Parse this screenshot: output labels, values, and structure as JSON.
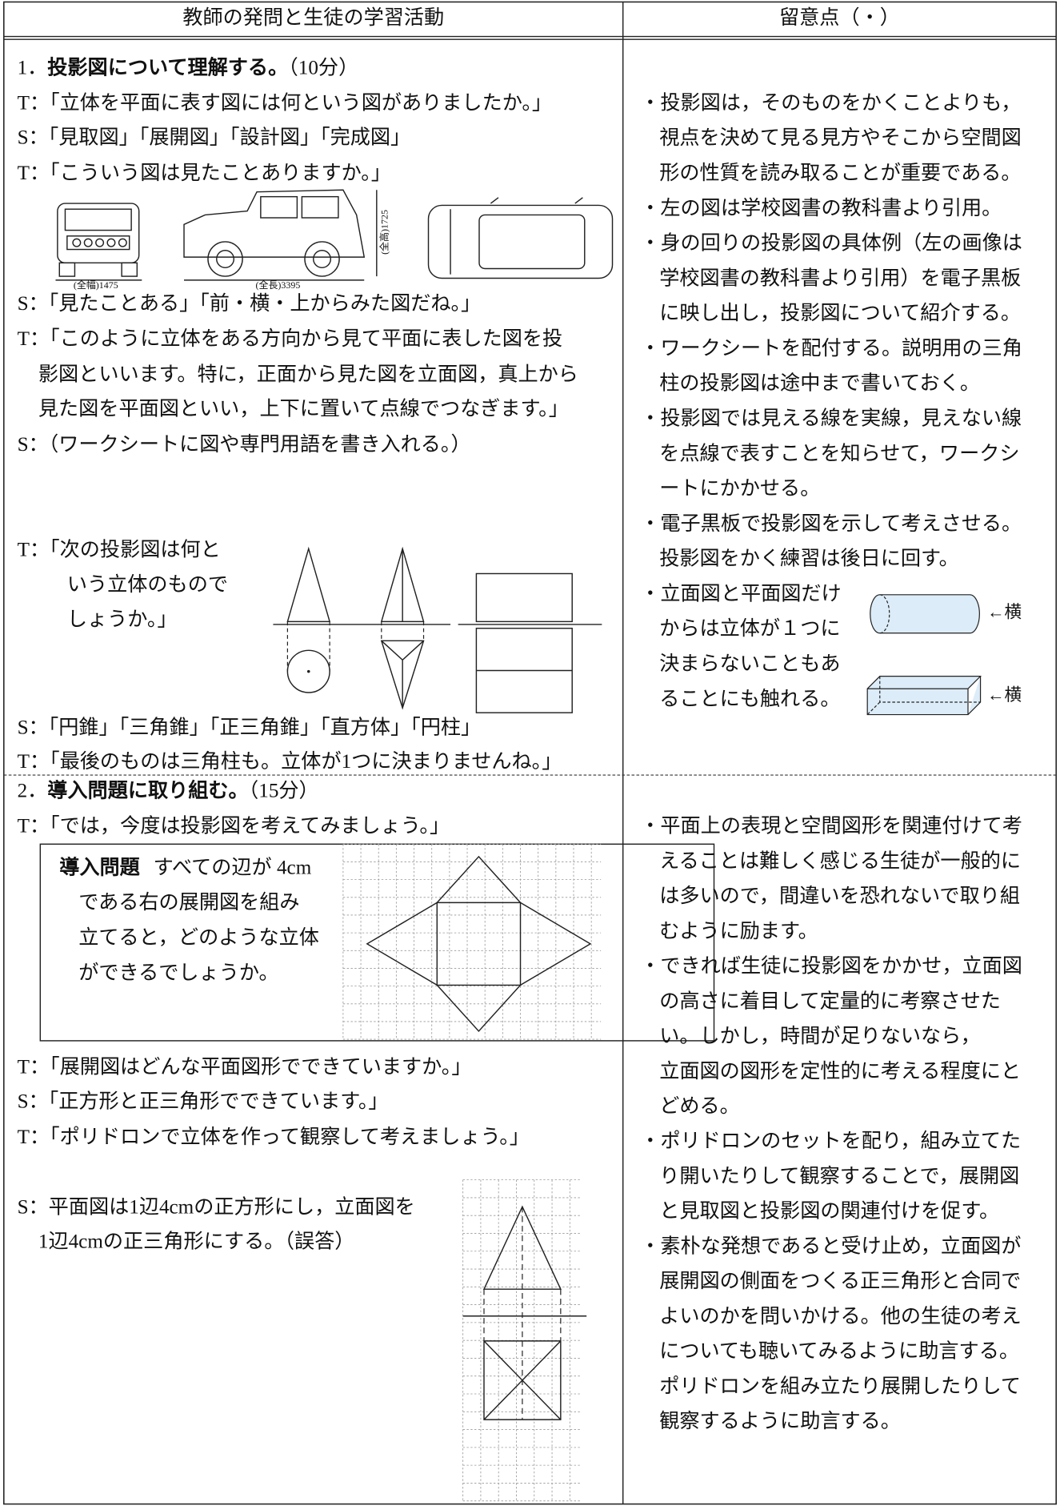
{
  "header": {
    "left": "教師の発問と生徒の学習活動",
    "right": "留意点（・）"
  },
  "section1": {
    "number": "1．",
    "heading": "投影図について理解する。",
    "time": "（10分）",
    "activities": [
      "T：「立体を平面に表す図には何という図がありましたか。」",
      "S：「見取図」「展開図」「設計図」「完成図」",
      "T：「こういう図は見たことありますか。」",
      "S：「見たことある」「前・横・上からみた図だね。」",
      "T：「このように立体をある方向から見て平面に表した図を投",
      "影図といいます。特に，正面から見た図を立面図，真上から",
      "見た図を平面図といい，上下に置いて点線でつなぎます。」",
      "S：（ワークシートに図や専門用語を書き入れる。）"
    ],
    "car_labels": {
      "width": "(全幅)1475",
      "length": "(全長)3395",
      "height": "(全高)1725"
    },
    "question": [
      "T：「次の投影図は何と",
      "いう立体のもので",
      "しょうか。」"
    ],
    "answers": [
      "S：「円錐」「三角錐」「正三角錐」「直方体」「円柱」",
      "T：「最後のものは三角柱も。立体が1つに決まりませんね。」"
    ],
    "notes": [
      "・投影図は，そのものをかくことよりも，",
      "視点を決めて見る見方やそこから空間図",
      "形の性質を読み取ることが重要である。",
      "・左の図は学校図書の教科書より引用。",
      "・身の回りの投影図の具体例（左の画像は",
      "学校図書の教科書より引用）を電子黒板",
      "に映し出し，投影図について紹介する。",
      "・ワークシートを配付する。説明用の三角",
      "柱の投影図は途中まで書いておく。",
      "・投影図では見える線を実線，見えない線",
      "を点線で表すことを知らせて，ワークシ",
      "ートにかかせる。",
      "・電子黒板で投影図を示して考えさせる。",
      "投影図をかく練習は後日に回す。",
      "・立面図と平面図だけ",
      "からは立体が１つに",
      "決まらないこともあ",
      "ることにも触れる。"
    ],
    "side_labels": [
      "←横",
      "←横"
    ]
  },
  "section2": {
    "number": "2．",
    "heading": "導入問題に取り組む。",
    "time": "（15分）",
    "activities": [
      "T：「では，今度は投影図を考えてみましょう。」"
    ],
    "problem": {
      "label": "導入問題",
      "lines": [
        "すべての辺が 4cm",
        "である右の展開図を組み",
        "立てると，どのような立体",
        "ができるでしょうか。"
      ]
    },
    "dialogue": [
      "T：「展開図はどんな平面図形でできていますか。」",
      "S：「正方形と正三角形でできています。」",
      "T：「ポリドロンで立体を作って観察して考えましょう。」",
      "S：平面図は1辺4cmの正方形にし，立面図を",
      "1辺4cmの正三角形にする。（誤答）"
    ],
    "notes": [
      "・平面上の表現と空間図形を関連付けて考",
      "えることは難しく感じる生徒が一般的に",
      "は多いので，間違いを恐れないで取り組",
      "むように励ます。",
      "・できれば生徒に投影図をかかせ，立面図",
      "の高さに着目して定量的に考察させた",
      "い。しかし，時間が足りないなら，",
      "立面図の図形を定性的に考える程度にと",
      "どめる。",
      "・ポリドロンのセットを配り，組み立てた",
      "り開いたりして観察することで，展開図",
      "と見取図と投影図の関連付けを促す。",
      "・素朴な発想であると受け止め，立面図が",
      "展開図の側面をつくる正三角形と合同で",
      "よいのかを問いかける。他の生徒の考え",
      "についても聴いてみるように助言する。",
      "ポリドロンを組み立たり展開したりして",
      "観察するように助言する。"
    ]
  }
}
